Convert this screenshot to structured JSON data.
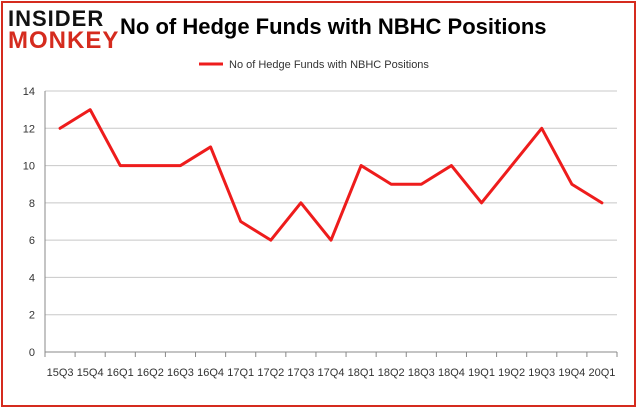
{
  "branding": {
    "logo_line1": "INSIDER",
    "logo_line2": "MONKEY",
    "accent_color": "#d52b1e"
  },
  "chart_data": {
    "type": "line",
    "title": "No of Hedge Funds with NBHC Positions",
    "xlabel": "",
    "ylabel": "",
    "categories": [
      "2015Q3",
      "2015Q4",
      "2016Q1",
      "2016Q2",
      "2016Q3",
      "2016Q4",
      "2017Q1",
      "2017Q2",
      "2017Q3",
      "2017Q4",
      "2018Q1",
      "2018Q2",
      "2018Q3",
      "2018Q4",
      "2019Q1",
      "2019Q2",
      "2019Q3",
      "2019Q4",
      "2020Q1"
    ],
    "tick_labels": [
      "15Q3",
      "15Q4",
      "16Q1",
      "16Q2",
      "16Q3",
      "16Q4",
      "17Q1",
      "17Q2",
      "17Q3",
      "17Q4",
      "18Q1",
      "18Q2",
      "18Q3",
      "18Q4",
      "19Q1",
      "19Q2",
      "19Q3",
      "19Q4",
      "20Q1"
    ],
    "series": [
      {
        "name": "No of Hedge Funds with NBHC Positions",
        "color": "#ee1c1c",
        "values": [
          12,
          13,
          10,
          10,
          10,
          11,
          7,
          6,
          8,
          6,
          10,
          9,
          9,
          10,
          8,
          10,
          12,
          9,
          8
        ]
      }
    ],
    "ylim": [
      0,
      14
    ],
    "yticks": [
      0,
      2,
      4,
      6,
      8,
      10,
      12,
      14
    ],
    "grid": true,
    "legend": "top-center"
  }
}
